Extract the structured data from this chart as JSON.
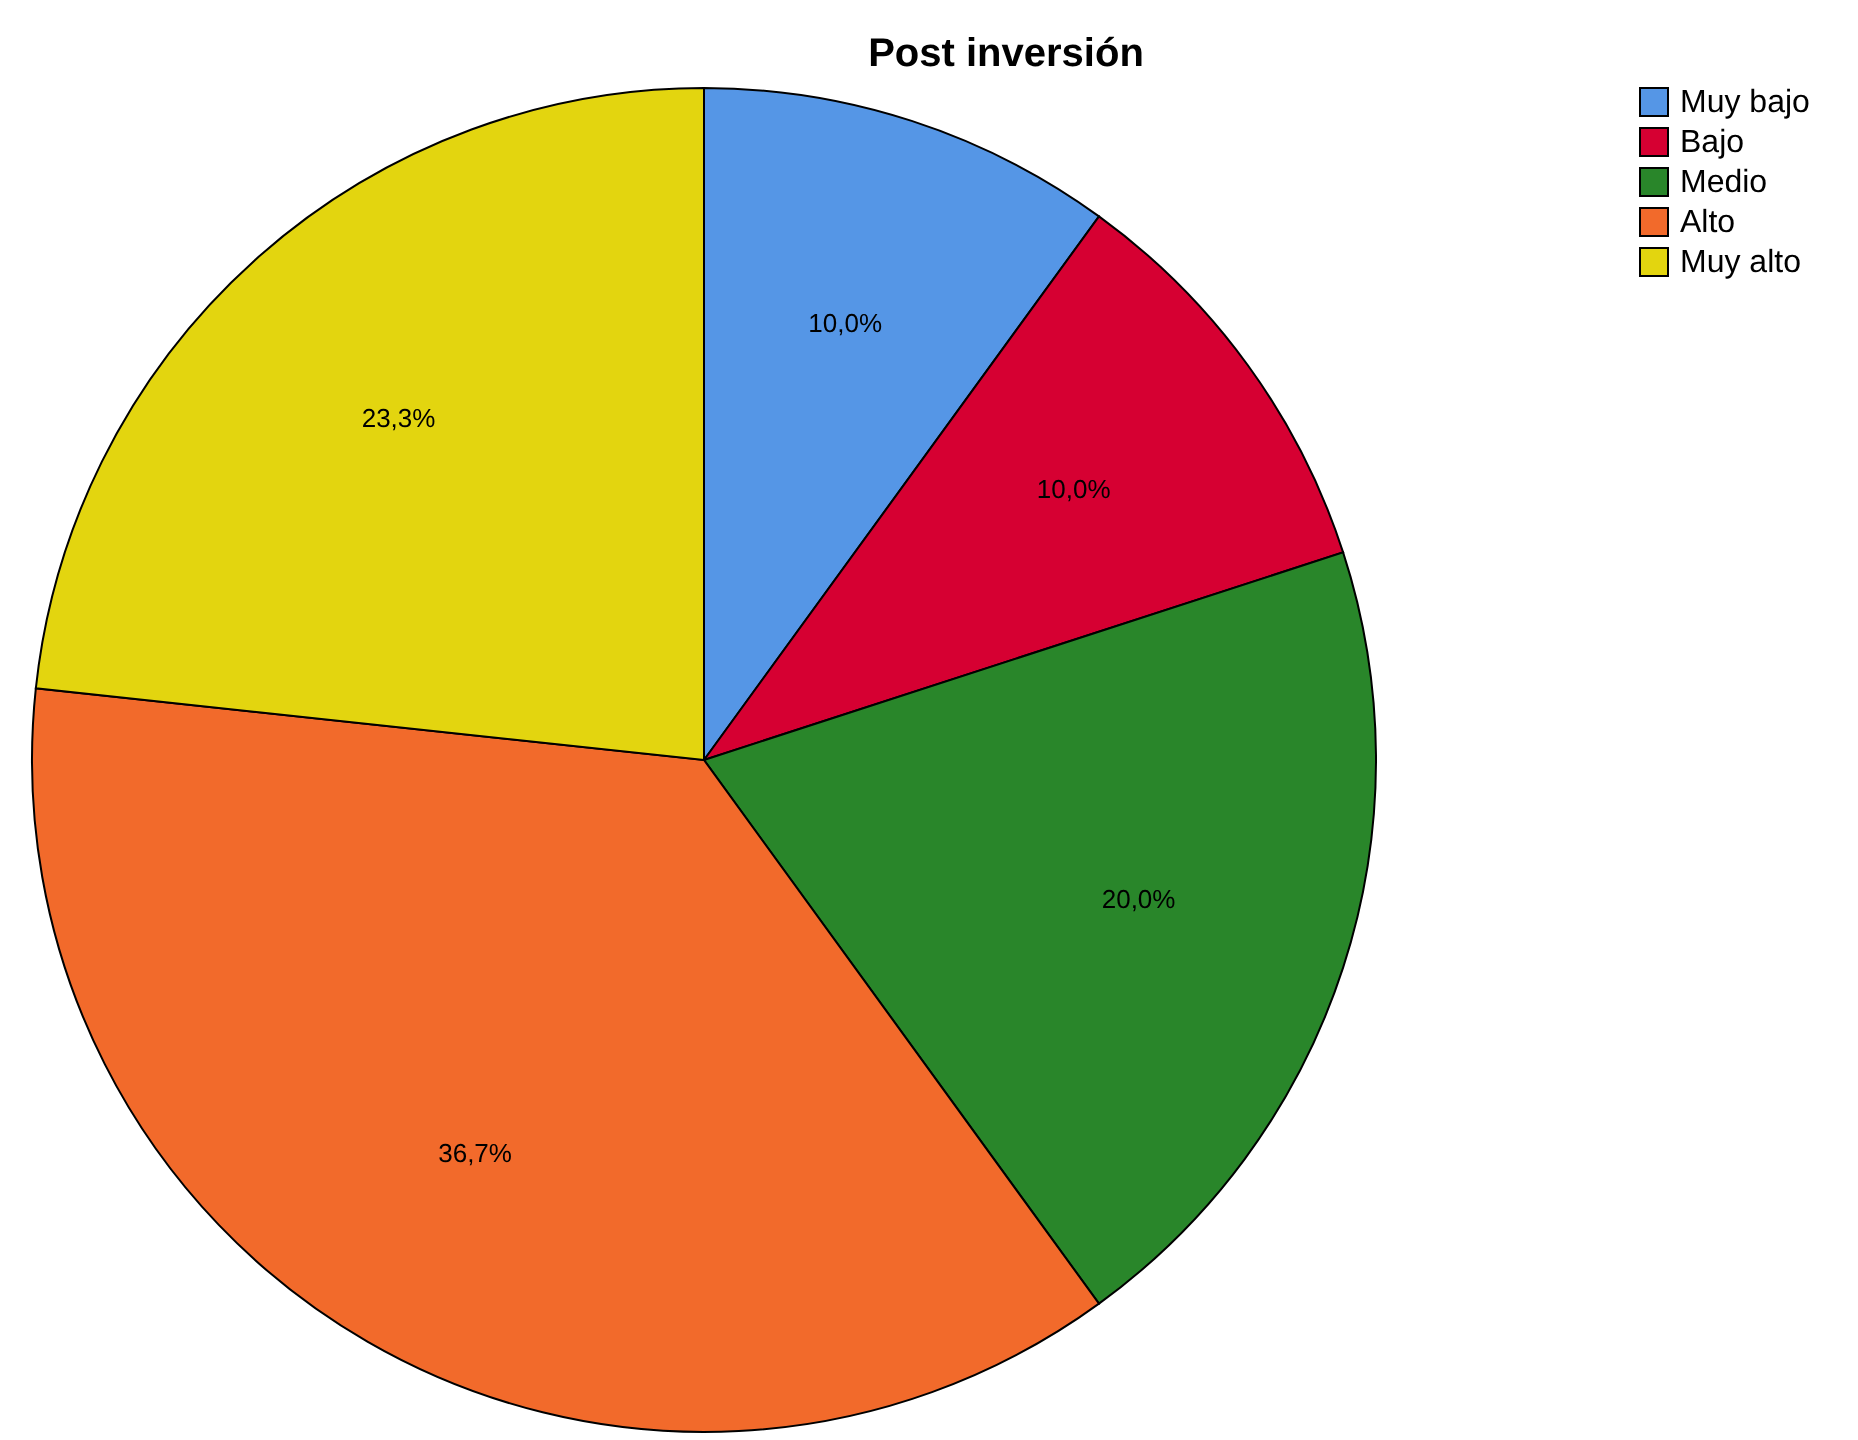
{
  "chart_data": {
    "type": "pie",
    "title": "Post inversión",
    "categories": [
      "Muy bajo",
      "Bajo",
      "Medio",
      "Alto",
      "Muy alto"
    ],
    "values": [
      10,
      10,
      20,
      36.7,
      23.3
    ],
    "value_labels": [
      "10,0%",
      "10,0%",
      "20,0%",
      "36,7%",
      "23,3%"
    ],
    "colors": [
      "#5596e6",
      "#d60032",
      "#29862a",
      "#f26a2b",
      "#e3d50f"
    ],
    "legend": "top right"
  }
}
